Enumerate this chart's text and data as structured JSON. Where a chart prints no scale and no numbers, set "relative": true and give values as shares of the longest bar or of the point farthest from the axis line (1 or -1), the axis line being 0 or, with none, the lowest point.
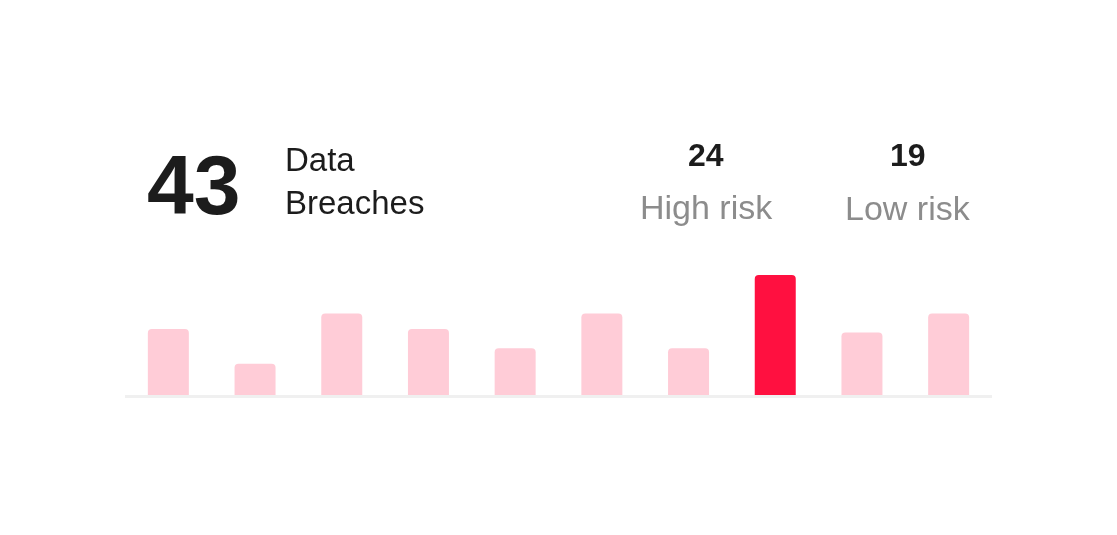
{
  "chart_data": {
    "type": "bar",
    "title": "43",
    "subtitle": "Data\nBreaches",
    "annotations": [
      "24",
      "High risk",
      "19",
      "Low risk"
    ],
    "categories": [
      null,
      null,
      null,
      null,
      null,
      null,
      null,
      null,
      null,
      null
    ],
    "values": [
      0.55,
      0.26,
      0.68,
      0.55,
      0.39,
      0.68,
      0.39,
      1,
      0.52,
      0.68
    ],
    "colors": [
      "#ffccd7",
      "#ffccd7",
      "#ffccd7",
      "#ffccd7",
      "#ffccd7",
      "#ffccd7",
      "#ffccd7",
      "#ff1040",
      "#ffccd7",
      "#ffccd7"
    ],
    "relative": true
  }
}
